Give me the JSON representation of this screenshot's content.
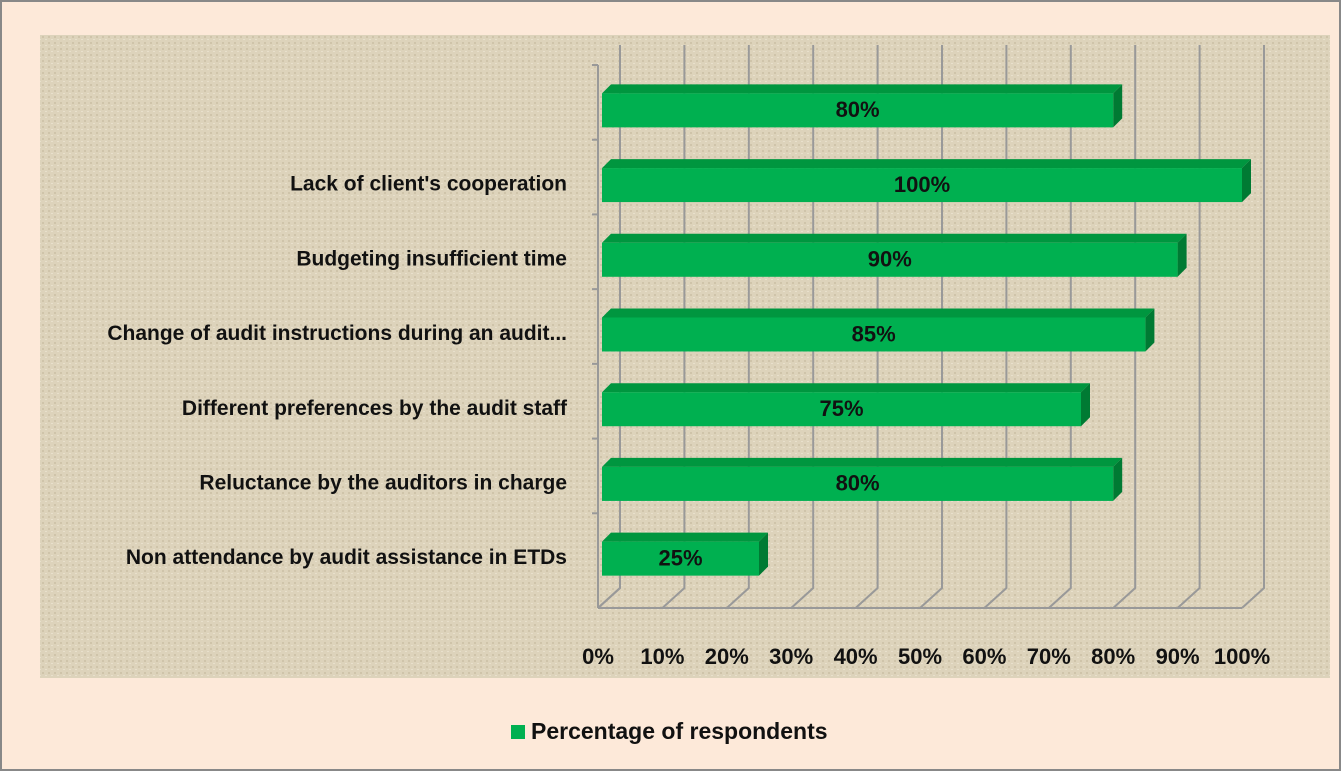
{
  "chart_data": {
    "type": "bar",
    "orientation": "horizontal",
    "categories": [
      null,
      "Lack of client's cooperation",
      "Budgeting insufficient time",
      "Change of audit instructions during an audit...",
      "Different preferences by the audit staff",
      "Reluctance by the auditors in charge",
      "Non attendance by audit assistance in ETDs"
    ],
    "series": [
      {
        "name": "Percentage of respondents",
        "color": "#00b050",
        "values": [
          80,
          100,
          90,
          85,
          75,
          80,
          25
        ],
        "value_labels": [
          "80%",
          "100%",
          "90%",
          "85%",
          "75%",
          "80%",
          "25%"
        ]
      }
    ],
    "xlim": [
      0,
      100
    ],
    "xticks": [
      {
        "value": 0,
        "label": "0%"
      },
      {
        "value": 10,
        "label": "10%"
      },
      {
        "value": 20,
        "label": "20%"
      },
      {
        "value": 30,
        "label": "30%"
      },
      {
        "value": 40,
        "label": "40%"
      },
      {
        "value": 50,
        "label": "50%"
      },
      {
        "value": 60,
        "label": "60%"
      },
      {
        "value": 70,
        "label": "70%"
      },
      {
        "value": 80,
        "label": "80%"
      },
      {
        "value": 90,
        "label": "90%"
      },
      {
        "value": 100,
        "label": "100%"
      }
    ],
    "grid": true,
    "legend": "bottom"
  }
}
